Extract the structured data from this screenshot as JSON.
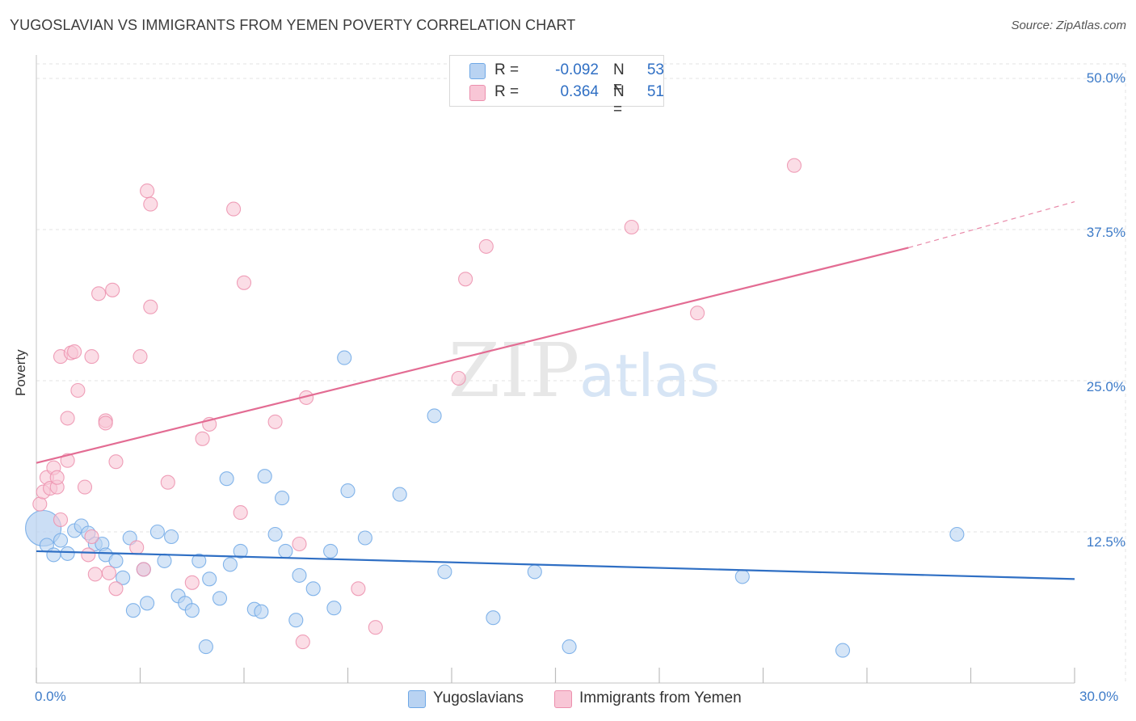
{
  "title": "YUGOSLAVIAN VS IMMIGRANTS FROM YEMEN POVERTY CORRELATION CHART",
  "source": "Source: ZipAtlas.com",
  "watermark": {
    "part1": "ZIP",
    "part2": "atlas"
  },
  "legend_top": {
    "rows": [
      {
        "r_label": "R =",
        "r_value": "-0.092",
        "n_label": "N =",
        "n_value": "53",
        "color": "#6fa8e6",
        "fill": "#b9d3f2"
      },
      {
        "r_label": "R =",
        "r_value": "0.364",
        "n_label": "N =",
        "n_value": "51",
        "color": "#ec8fad",
        "fill": "#f8c6d6"
      }
    ]
  },
  "legend_bottom": [
    {
      "label": "Yugoslavians",
      "fill": "#b9d3f2",
      "color": "#6fa8e6"
    },
    {
      "label": "Immigrants from Yemen",
      "fill": "#f8c6d6",
      "color": "#ec8fad"
    }
  ],
  "chart_data": {
    "type": "scatter",
    "xlabel": "",
    "ylabel": "Poverty",
    "xlim": [
      0,
      30
    ],
    "ylim": [
      0,
      50
    ],
    "x_tick_labels": {
      "min": "0.0%",
      "max": "30.0%"
    },
    "y_ticks": [
      {
        "value": 12.5,
        "label": "12.5%"
      },
      {
        "value": 25.0,
        "label": "25.0%"
      },
      {
        "value": 37.5,
        "label": "37.5%"
      },
      {
        "value": 50.0,
        "label": "50.0%"
      }
    ],
    "grid": true,
    "series": [
      {
        "name": "Yugoslavians",
        "color": "#6fa8e6",
        "fill": "#b9d3f2",
        "trend": {
          "x0": 0,
          "y0": 10.9,
          "x1": 30,
          "y1": 8.6,
          "color": "#2f6fc4"
        },
        "points": [
          [
            0.2,
            12.8
          ],
          [
            0.3,
            11.4
          ],
          [
            0.5,
            10.6
          ],
          [
            0.7,
            11.8
          ],
          [
            0.9,
            10.7
          ],
          [
            1.1,
            12.6
          ],
          [
            1.3,
            13.0
          ],
          [
            1.5,
            12.4
          ],
          [
            1.7,
            11.5
          ],
          [
            1.9,
            11.5
          ],
          [
            2.0,
            10.6
          ],
          [
            2.3,
            10.1
          ],
          [
            2.5,
            8.7
          ],
          [
            2.7,
            12.0
          ],
          [
            2.8,
            6.0
          ],
          [
            3.1,
            9.4
          ],
          [
            3.2,
            6.6
          ],
          [
            3.5,
            12.5
          ],
          [
            3.7,
            10.1
          ],
          [
            3.9,
            12.1
          ],
          [
            4.1,
            7.2
          ],
          [
            4.3,
            6.6
          ],
          [
            4.5,
            6.0
          ],
          [
            4.7,
            10.1
          ],
          [
            4.9,
            3.0
          ],
          [
            5.0,
            8.6
          ],
          [
            5.3,
            7.0
          ],
          [
            5.5,
            16.9
          ],
          [
            5.6,
            9.8
          ],
          [
            5.9,
            10.9
          ],
          [
            6.3,
            6.1
          ],
          [
            6.5,
            5.9
          ],
          [
            6.6,
            17.1
          ],
          [
            6.9,
            12.3
          ],
          [
            7.1,
            15.3
          ],
          [
            7.2,
            10.9
          ],
          [
            7.5,
            5.2
          ],
          [
            7.6,
            8.9
          ],
          [
            8.0,
            7.8
          ],
          [
            8.5,
            10.9
          ],
          [
            8.6,
            6.2
          ],
          [
            8.9,
            26.9
          ],
          [
            9.0,
            15.9
          ],
          [
            9.5,
            12.0
          ],
          [
            10.5,
            15.6
          ],
          [
            11.5,
            22.1
          ],
          [
            11.8,
            9.2
          ],
          [
            13.2,
            5.4
          ],
          [
            14.4,
            9.2
          ],
          [
            15.4,
            3.0
          ],
          [
            20.4,
            8.8
          ],
          [
            23.3,
            2.7
          ],
          [
            26.6,
            12.3
          ]
        ]
      },
      {
        "name": "Immigrants from Yemen",
        "color": "#ec8fad",
        "fill": "#f8c6d6",
        "trend": {
          "x0": 0,
          "y0": 18.2,
          "x1": 25.2,
          "y1": 36.0,
          "x2": 30,
          "y2": 39.8,
          "color": "#e36c93"
        },
        "points": [
          [
            0.1,
            14.8
          ],
          [
            0.2,
            15.8
          ],
          [
            0.3,
            17.0
          ],
          [
            0.4,
            16.1
          ],
          [
            0.5,
            17.8
          ],
          [
            0.6,
            16.2
          ],
          [
            0.6,
            17.0
          ],
          [
            0.7,
            13.5
          ],
          [
            0.7,
            27.0
          ],
          [
            0.9,
            18.4
          ],
          [
            0.9,
            21.9
          ],
          [
            1.0,
            27.3
          ],
          [
            1.1,
            27.4
          ],
          [
            1.2,
            24.2
          ],
          [
            1.4,
            16.2
          ],
          [
            1.5,
            10.6
          ],
          [
            1.6,
            12.1
          ],
          [
            1.6,
            27.0
          ],
          [
            1.7,
            9.0
          ],
          [
            1.8,
            32.2
          ],
          [
            2.0,
            21.7
          ],
          [
            2.0,
            21.5
          ],
          [
            2.1,
            9.1
          ],
          [
            2.2,
            32.5
          ],
          [
            2.3,
            7.8
          ],
          [
            2.3,
            18.3
          ],
          [
            2.9,
            11.2
          ],
          [
            3.0,
            27.0
          ],
          [
            3.1,
            9.4
          ],
          [
            3.2,
            40.7
          ],
          [
            3.3,
            39.6
          ],
          [
            3.3,
            31.1
          ],
          [
            3.8,
            16.6
          ],
          [
            4.5,
            8.3
          ],
          [
            4.8,
            20.2
          ],
          [
            5.0,
            21.4
          ],
          [
            5.7,
            39.2
          ],
          [
            5.9,
            14.1
          ],
          [
            6.0,
            33.1
          ],
          [
            6.9,
            21.6
          ],
          [
            7.6,
            11.5
          ],
          [
            7.7,
            3.4
          ],
          [
            7.8,
            23.6
          ],
          [
            9.3,
            7.8
          ],
          [
            9.8,
            4.6
          ],
          [
            12.2,
            25.2
          ],
          [
            12.4,
            33.4
          ],
          [
            13.0,
            36.1
          ],
          [
            17.2,
            37.7
          ],
          [
            19.1,
            30.6
          ],
          [
            21.9,
            42.8
          ]
        ]
      }
    ]
  }
}
